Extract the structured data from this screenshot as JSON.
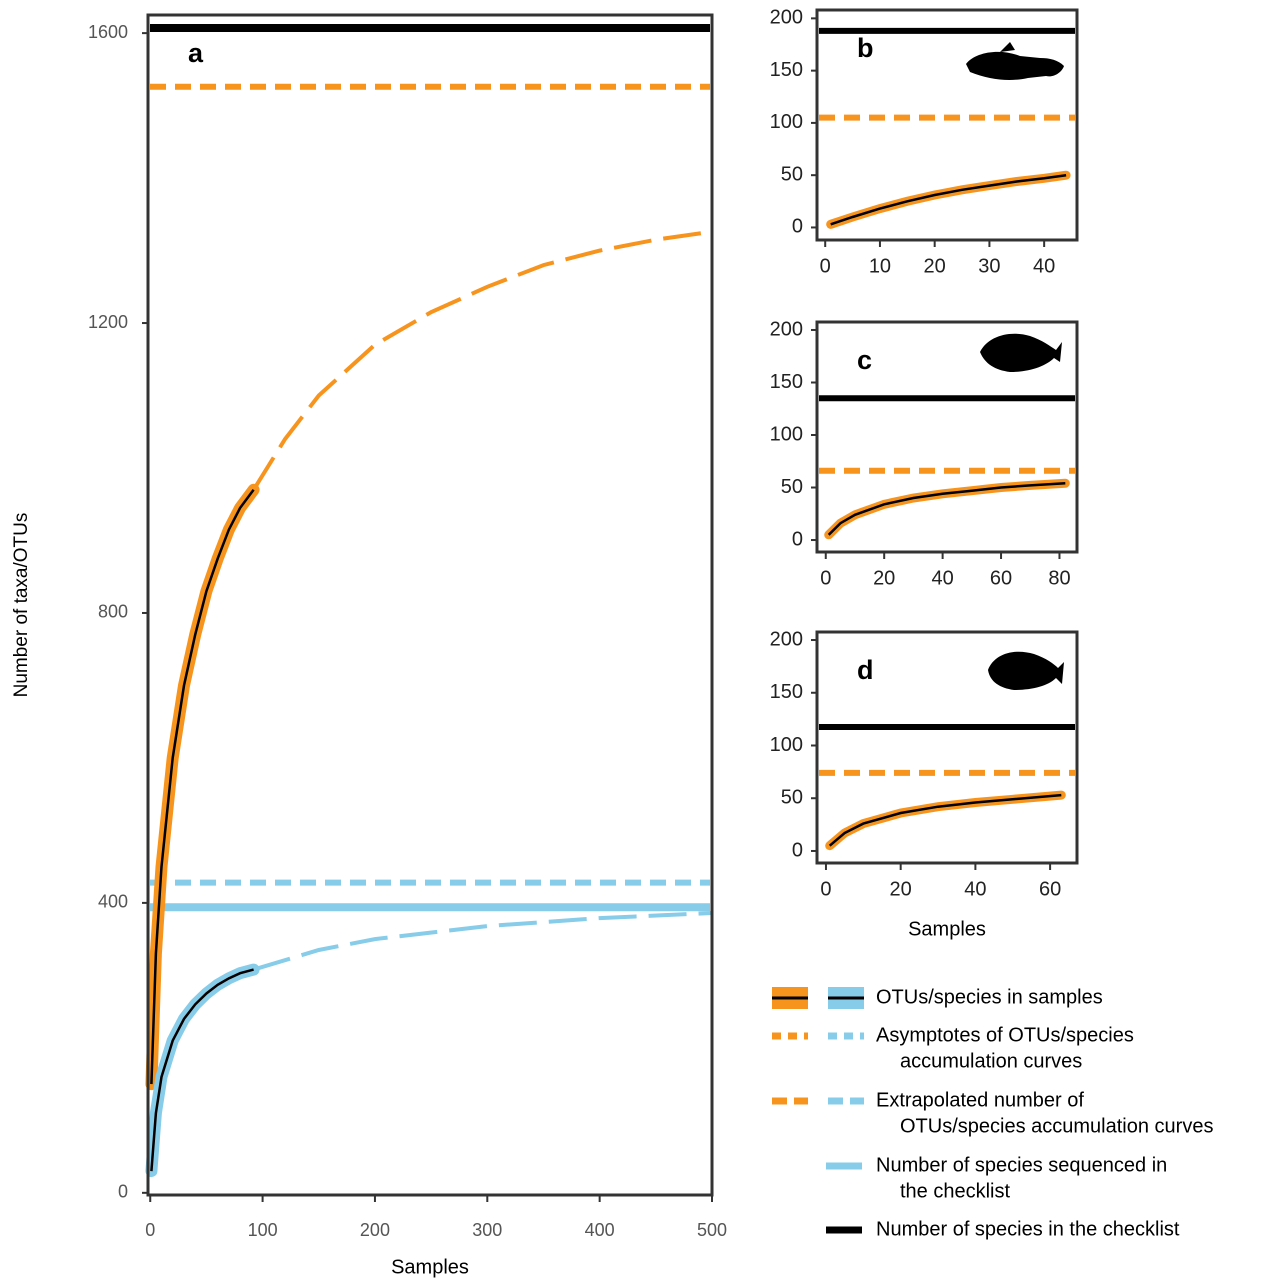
{
  "chart_data": [
    {
      "type": "line",
      "title": "a",
      "xlabel": "Samples",
      "ylabel": "Number of taxa/OTUs",
      "xlim": [
        -2,
        500
      ],
      "ylim": [
        -3,
        1625
      ],
      "xticks": [
        0,
        100,
        200,
        300,
        400,
        500
      ],
      "yticks": [
        0,
        400,
        800,
        1200,
        1600
      ],
      "reference_lines": [
        {
          "value": 1607,
          "color": "#000000",
          "line_style": "solid"
        },
        {
          "value": 1526,
          "color": "#f7941d",
          "line_style": "dash"
        },
        {
          "value": 428,
          "color": "#87cce8",
          "line_style": "dash"
        },
        {
          "value": 394,
          "color": "#87cce8",
          "line_style": "solid"
        }
      ],
      "series": [
        {
          "color": "#f7941d",
          "line_style": "long-dash",
          "x": [
            92,
            120,
            150,
            200,
            250,
            300,
            350,
            400,
            450,
            500
          ],
          "values": [
            970,
            1040,
            1100,
            1170,
            1215,
            1250,
            1280,
            1300,
            1315,
            1326
          ]
        },
        {
          "color": "#87cce8",
          "line_style": "long-dash",
          "x": [
            92,
            150,
            200,
            300,
            400,
            500
          ],
          "values": [
            308,
            335,
            350,
            368,
            379,
            386
          ]
        },
        {
          "color": "#f7941d",
          "line_style": "band",
          "x": [
            1,
            5,
            10,
            20,
            30,
            40,
            50,
            60,
            70,
            80,
            92
          ],
          "values": [
            150,
            330,
            450,
            600,
            700,
            770,
            830,
            875,
            915,
            945,
            970
          ]
        },
        {
          "color": "#87cce8",
          "line_style": "band",
          "x": [
            1,
            5,
            10,
            20,
            30,
            40,
            50,
            60,
            70,
            80,
            92
          ],
          "values": [
            30,
            110,
            160,
            210,
            240,
            260,
            275,
            287,
            296,
            303,
            308
          ]
        }
      ]
    },
    {
      "type": "line",
      "title": "b",
      "xlim": [
        -1.5,
        46
      ],
      "ylim": [
        -12,
        208
      ],
      "xticks": [
        0,
        10,
        20,
        30,
        40
      ],
      "yticks": [
        0,
        50,
        100,
        150,
        200
      ],
      "reference_lines": [
        {
          "value": 188,
          "color": "#000000",
          "line_style": "solid"
        },
        {
          "value": 105,
          "color": "#f7941d",
          "line_style": "dash"
        }
      ],
      "series": [
        {
          "color": "#f7941d",
          "line_style": "band",
          "x": [
            1,
            5,
            10,
            15,
            20,
            25,
            30,
            35,
            40,
            44
          ],
          "values": [
            3,
            10,
            18,
            25,
            31,
            36,
            40,
            44,
            47,
            50
          ]
        }
      ]
    },
    {
      "type": "line",
      "title": "c",
      "xlim": [
        -3,
        86
      ],
      "ylim": [
        -11.4,
        207.6
      ],
      "xticks": [
        0,
        20,
        40,
        60,
        80
      ],
      "yticks": [
        0,
        50,
        100,
        150,
        200
      ],
      "reference_lines": [
        {
          "value": 135,
          "color": "#000000",
          "line_style": "solid"
        },
        {
          "value": 66,
          "color": "#f7941d",
          "line_style": "dash"
        }
      ],
      "series": [
        {
          "color": "#f7941d",
          "line_style": "band",
          "x": [
            1,
            5,
            10,
            20,
            30,
            40,
            50,
            60,
            70,
            82
          ],
          "values": [
            5,
            16,
            24,
            34,
            40,
            44,
            47,
            50,
            52,
            54
          ]
        }
      ]
    },
    {
      "type": "line",
      "title": "d",
      "xlabel": "Samples",
      "xlim": [
        -2.4,
        67.2
      ],
      "ylim": [
        -11.4,
        207.6
      ],
      "xticks": [
        0,
        20,
        40,
        60
      ],
      "yticks": [
        0,
        50,
        100,
        150,
        200
      ],
      "reference_lines": [
        {
          "value": 117.5,
          "color": "#000000",
          "line_style": "solid"
        },
        {
          "value": 74,
          "color": "#f7941d",
          "line_style": "dash"
        }
      ],
      "series": [
        {
          "color": "#f7941d",
          "line_style": "band",
          "x": [
            1,
            5,
            10,
            20,
            30,
            40,
            50,
            63
          ],
          "values": [
            5,
            17,
            26,
            36,
            42,
            46,
            49,
            53
          ]
        }
      ]
    }
  ],
  "legend": [
    {
      "lines": [
        "OTUs/species in samples"
      ],
      "colors": [
        "#f7941d",
        "#87cce8"
      ],
      "line_style": "band"
    },
    {
      "lines": [
        "Asymptotes of OTUs/species",
        "accumulation curves"
      ],
      "colors": [
        "#f7941d",
        "#87cce8"
      ],
      "line_style": "dash"
    },
    {
      "lines": [
        "Extrapolated number of",
        "OTUs/species accumulation curves"
      ],
      "colors": [
        "#f7941d",
        "#87cce8"
      ],
      "line_style": "long-dash"
    },
    {
      "lines": [
        "Number of species sequenced in",
        "the checklist"
      ],
      "colors": [
        "#87cce8"
      ],
      "line_style": "solid"
    },
    {
      "lines": [
        "Number of species in the checklist"
      ],
      "colors": [
        "#000000"
      ],
      "line_style": "solid"
    }
  ]
}
